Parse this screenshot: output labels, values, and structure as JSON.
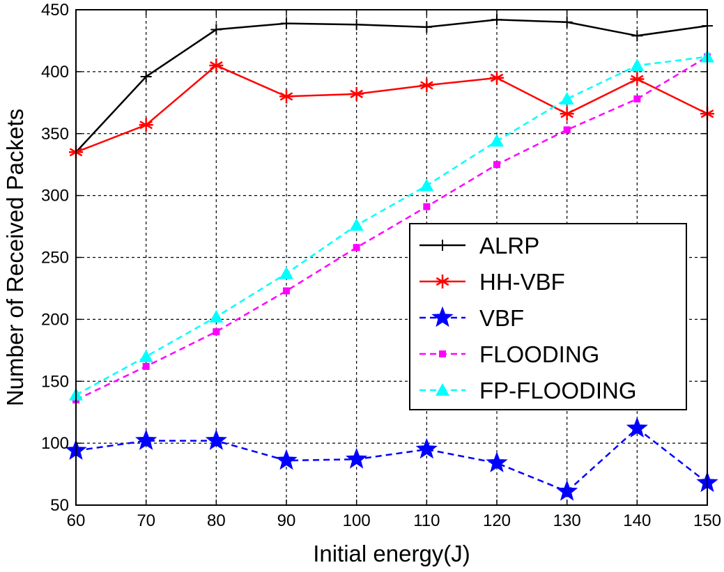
{
  "chart_data": {
    "type": "line",
    "title": "",
    "xlabel": "Initial energy(J)",
    "ylabel": "Number of Received Packets",
    "x": [
      60,
      70,
      80,
      90,
      100,
      110,
      120,
      130,
      140,
      150
    ],
    "xlim": [
      60,
      150
    ],
    "ylim": [
      50,
      450
    ],
    "xticks": [
      "60",
      "70",
      "80",
      "90",
      "100",
      "110",
      "120",
      "130",
      "140",
      "150"
    ],
    "yticks": [
      "50",
      "100",
      "150",
      "200",
      "250",
      "300",
      "350",
      "400",
      "450"
    ],
    "grid": true,
    "legend_position": "center-right",
    "series": [
      {
        "name": "ALRP",
        "color": "#000000",
        "line_style": "solid",
        "marker": "plus",
        "values": [
          335,
          396,
          434,
          439,
          438,
          436,
          442,
          440,
          429,
          437
        ]
      },
      {
        "name": "HH-VBF",
        "color": "#ff0000",
        "line_style": "solid",
        "marker": "asterisk",
        "values": [
          335,
          357,
          405,
          380,
          382,
          389,
          395,
          366,
          394,
          366
        ]
      },
      {
        "name": "VBF",
        "color": "#0000ff",
        "line_style": "dashed",
        "marker": "pentagram",
        "values": [
          94,
          102,
          102,
          86,
          87,
          95,
          84,
          61,
          112,
          68
        ]
      },
      {
        "name": "FLOODING",
        "color": "#ff00ff",
        "line_style": "dashed",
        "marker": "square",
        "values": [
          135,
          162,
          190,
          223,
          258,
          291,
          325,
          353,
          378,
          412
        ]
      },
      {
        "name": "FP-FLOODING",
        "color": "#00ffff",
        "line_style": "dashed",
        "marker": "triangle",
        "values": [
          139,
          170,
          202,
          237,
          276,
          308,
          344,
          378,
          405,
          412
        ]
      }
    ]
  }
}
